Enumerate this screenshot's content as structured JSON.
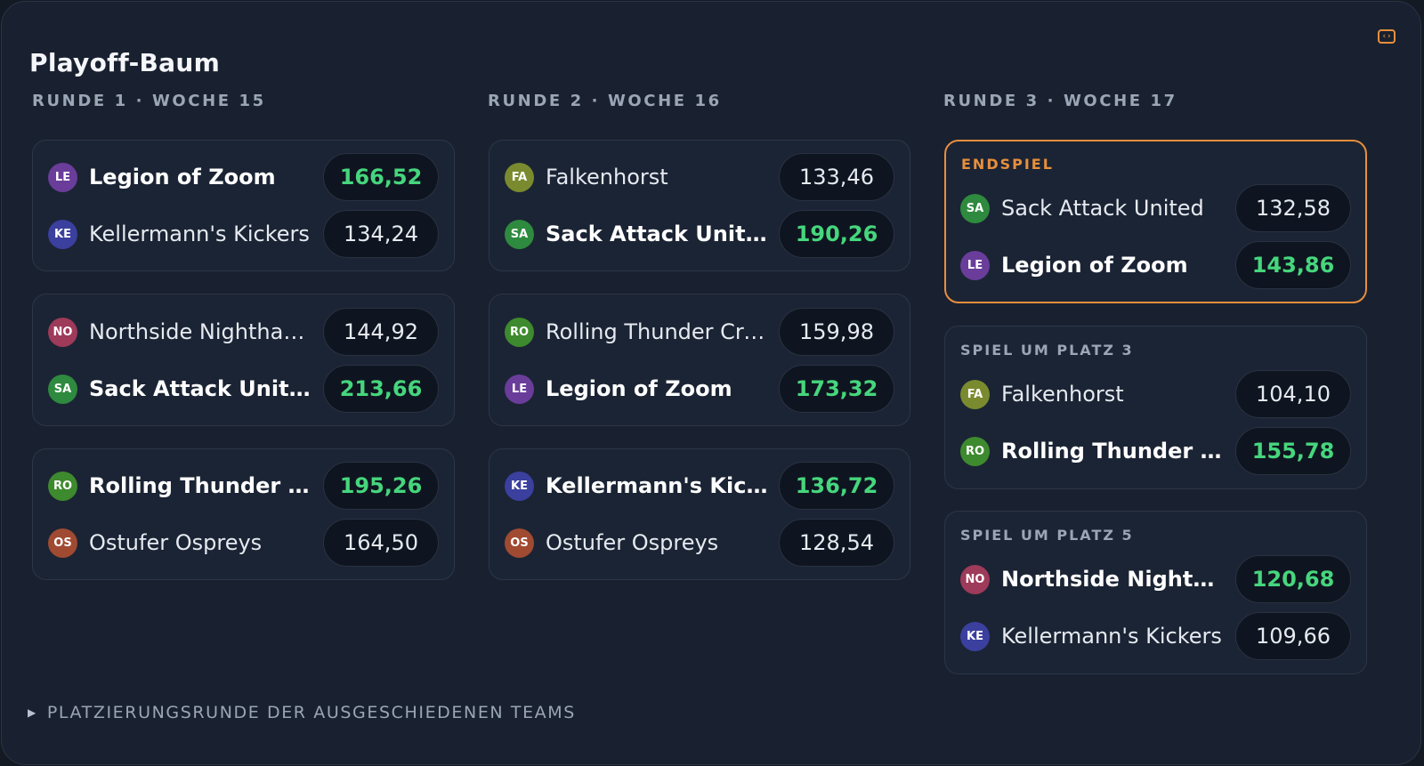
{
  "page": {
    "title": "Playoff-Baum"
  },
  "colors": {
    "background": "#192130",
    "winner_score": "#46d67d",
    "final_accent": "#e88f3d"
  },
  "avatars": {
    "LE": "#6a3d9a",
    "KE": "#3b3f9e",
    "NO": "#9e3a5a",
    "SA": "#2e8a3e",
    "RO": "#3e8a2e",
    "OS": "#a04a32",
    "FA": "#7a8a2e"
  },
  "rounds": [
    {
      "label": "RUNDE 1 · WOCHE 15",
      "matches": [
        {
          "teams": [
            {
              "abbr": "LE",
              "name": "Legion of Zoom",
              "score": "166,52",
              "winner": true
            },
            {
              "abbr": "KE",
              "name": "Kellermann's Kickers",
              "score": "134,24",
              "winner": false
            }
          ]
        },
        {
          "teams": [
            {
              "abbr": "NO",
              "name": "Northside Nighthawks",
              "score": "144,92",
              "winner": false
            },
            {
              "abbr": "SA",
              "name": "Sack Attack United",
              "score": "213,66",
              "winner": true
            }
          ]
        },
        {
          "teams": [
            {
              "abbr": "RO",
              "name": "Rolling Thunder Crew",
              "score": "195,26",
              "winner": true
            },
            {
              "abbr": "OS",
              "name": "Ostufer Ospreys",
              "score": "164,50",
              "winner": false
            }
          ]
        }
      ]
    },
    {
      "label": "RUNDE 2 · WOCHE 16",
      "matches": [
        {
          "teams": [
            {
              "abbr": "FA",
              "name": "Falkenhorst",
              "score": "133,46",
              "winner": false
            },
            {
              "abbr": "SA",
              "name": "Sack Attack United",
              "score": "190,26",
              "winner": true
            }
          ]
        },
        {
          "teams": [
            {
              "abbr": "RO",
              "name": "Rolling Thunder Crew",
              "score": "159,98",
              "winner": false
            },
            {
              "abbr": "LE",
              "name": "Legion of Zoom",
              "score": "173,32",
              "winner": true
            }
          ]
        },
        {
          "teams": [
            {
              "abbr": "KE",
              "name": "Kellermann's Kickers",
              "score": "136,72",
              "winner": true
            },
            {
              "abbr": "OS",
              "name": "Ostufer Ospreys",
              "score": "128,54",
              "winner": false
            }
          ]
        }
      ]
    },
    {
      "label": "RUNDE 3 · WOCHE 17",
      "matches": [
        {
          "label": "ENDSPIEL",
          "final": true,
          "teams": [
            {
              "abbr": "SA",
              "name": "Sack Attack United",
              "score": "132,58",
              "winner": false
            },
            {
              "abbr": "LE",
              "name": "Legion of Zoom",
              "score": "143,86",
              "winner": true
            }
          ]
        },
        {
          "label": "SPIEL UM PLATZ 3",
          "teams": [
            {
              "abbr": "FA",
              "name": "Falkenhorst",
              "score": "104,10",
              "winner": false
            },
            {
              "abbr": "RO",
              "name": "Rolling Thunder Crew",
              "score": "155,78",
              "winner": true
            }
          ]
        },
        {
          "label": "SPIEL UM PLATZ 5",
          "teams": [
            {
              "abbr": "NO",
              "name": "Northside Nighthawks",
              "score": "120,68",
              "winner": true
            },
            {
              "abbr": "KE",
              "name": "Kellermann's Kickers",
              "score": "109,66",
              "winner": false
            }
          ]
        }
      ]
    }
  ],
  "footer": {
    "label": "PLATZIERUNGSRUNDE DER AUSGESCHIEDENEN TEAMS"
  }
}
